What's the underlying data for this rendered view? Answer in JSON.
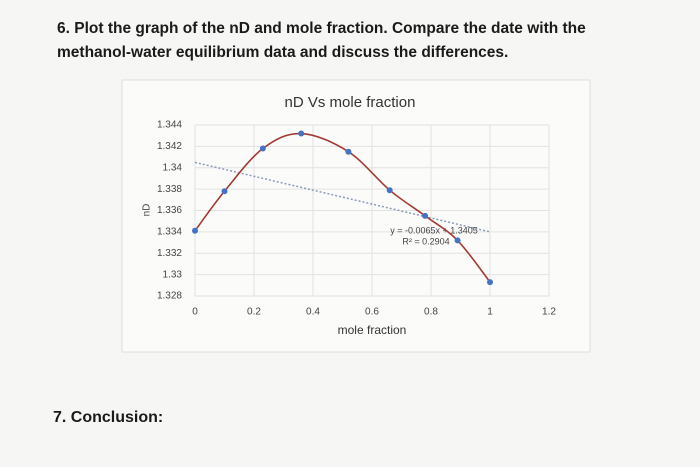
{
  "document": {
    "question_6": "6. Plot the graph of the nD and mole fraction. Compare the date with the methanol-water equilibrium data and discuss the differences.",
    "question_7": "7. Conclusion:"
  },
  "chart_data": {
    "type": "scatter",
    "title": "nD Vs mole fraction",
    "x_label": "mole fraction",
    "y_label": "nD",
    "series": [
      {
        "color": "#4472c4",
        "line_color": "#a33a32",
        "x": [
          0,
          0.1,
          0.23,
          0.36,
          0.52,
          0.66,
          0.78,
          0.89,
          1
        ],
        "values": [
          1.3341,
          1.3378,
          1.3418,
          1.3432,
          1.3415,
          1.3379,
          1.3355,
          1.3332,
          1.3293
        ]
      }
    ],
    "trendline": {
      "slope": -0.0065,
      "intercept": 1.3405,
      "color": "#8a9bb8",
      "equation": "y = -0.0065x + 1.3405",
      "r_squared": "R² = 0.2904"
    },
    "xlim": [
      0,
      1.2
    ],
    "xticks": [
      0,
      0.2,
      0.4,
      0.6,
      0.8,
      1,
      1.2
    ],
    "ylim": [
      1.328,
      1.344
    ],
    "yticks": [
      1.344,
      1.342,
      1.34,
      1.338,
      1.336,
      1.334,
      1.332,
      1.33,
      1.328
    ],
    "grid": true
  }
}
